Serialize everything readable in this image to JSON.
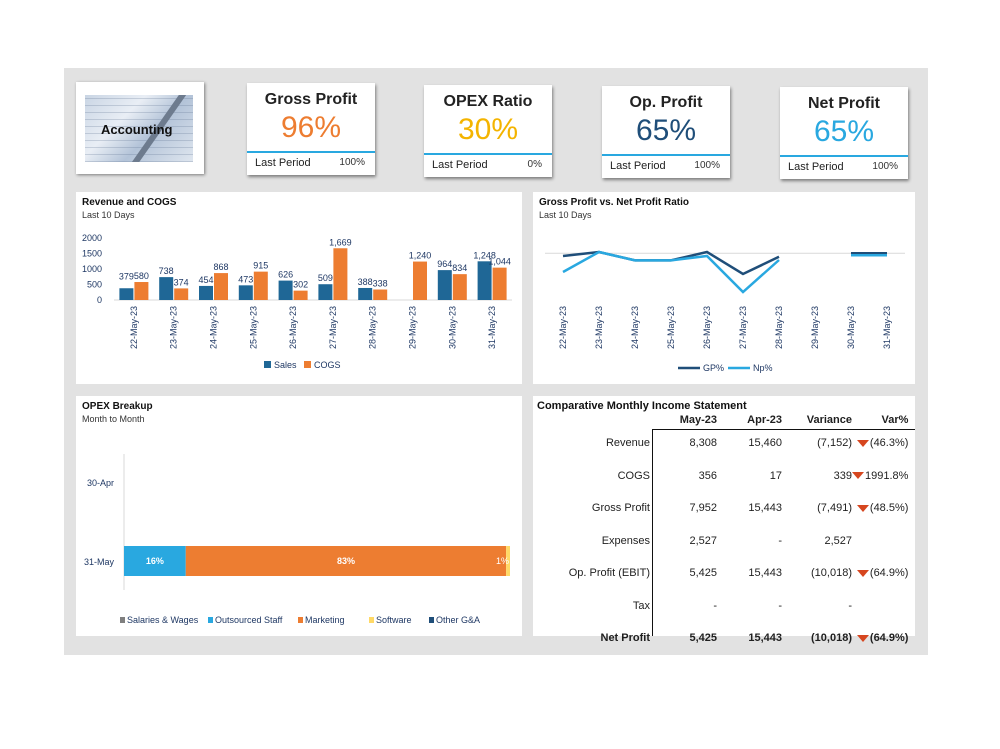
{
  "logo": {
    "label": "Accounting"
  },
  "kpis": [
    {
      "title": "Gross Profit",
      "value": "96%",
      "color": "#ed7d31",
      "period_label": "Last Period",
      "period_value": "100%"
    },
    {
      "title": "OPEX Ratio",
      "value": "30%",
      "color": "#f4b400",
      "period_label": "Last Period",
      "period_value": "0%"
    },
    {
      "title": "Op. Profit",
      "value": "65%",
      "color": "#1f4e79",
      "period_label": "Last Period",
      "period_value": "100%"
    },
    {
      "title": "Net Profit",
      "value": "65%",
      "color": "#29a8e0",
      "period_label": "Last Period",
      "period_value": "100%"
    }
  ],
  "panels": {
    "revenue": {
      "title": "Revenue and COGS",
      "subtitle": "Last 10 Days"
    },
    "gp": {
      "title": "Gross Profit vs. Net Profit Ratio",
      "subtitle": "Last 10 Days"
    },
    "opex": {
      "title": "OPEX Breakup",
      "subtitle": "Month to Month"
    },
    "income": {
      "title": "Comparative Monthly Income Statement"
    }
  },
  "colors": {
    "sales": "#1f6796",
    "cogs": "#ed7d31",
    "gp": "#1f4e79",
    "np": "#29a8e0",
    "salaries": "#7f7f7f",
    "outsourced": "#29a8e0",
    "marketing": "#ed7d31",
    "software": "#ffd966",
    "other": "#1f4e79"
  },
  "chart_data": [
    {
      "type": "bar",
      "title": "Revenue and COGS",
      "subtitle": "Last 10 Days",
      "categories": [
        "22-May-23",
        "23-May-23",
        "24-May-23",
        "25-May-23",
        "26-May-23",
        "27-May-23",
        "28-May-23",
        "29-May-23",
        "30-May-23",
        "31-May-23"
      ],
      "series": [
        {
          "name": "Sales",
          "values": [
            379,
            738,
            454,
            473,
            626,
            509,
            388,
            null,
            964,
            1248
          ],
          "labels": [
            "379",
            "738",
            "454",
            "473",
            "626",
            "509",
            "388",
            "",
            "964",
            "1,248"
          ]
        },
        {
          "name": "COGS",
          "values": [
            580,
            374,
            868,
            915,
            302,
            1669,
            338,
            1240,
            834,
            1044
          ],
          "labels": [
            "580",
            "374",
            "868",
            "915",
            "302",
            "1,669",
            "338",
            "1,240",
            "834",
            "1,044"
          ]
        }
      ],
      "ylim": [
        0,
        2000
      ],
      "yticks": [
        "2000",
        "1500",
        "1000",
        "500",
        "0"
      ],
      "legend": "bottom"
    },
    {
      "type": "line",
      "title": "Gross Profit vs. Net Profit Ratio",
      "subtitle": "Last 10 Days",
      "categories": [
        "22-May-23",
        "23-May-23",
        "24-May-23",
        "25-May-23",
        "26-May-23",
        "27-May-23",
        "28-May-23",
        "29-May-23",
        "30-May-23",
        "31-May-23"
      ],
      "series": [
        {
          "name": "GP%",
          "values": [
            0.9,
            1.0,
            0.79,
            0.79,
            1.0,
            0.45,
            0.88,
            null,
            0.97,
            0.97
          ]
        },
        {
          "name": "Np%",
          "values": [
            0.5,
            1.0,
            0.79,
            0.79,
            0.9,
            0.0,
            0.8,
            null,
            0.92,
            0.92
          ]
        }
      ],
      "ylim": [
        0,
        1.1
      ],
      "legend": "bottom"
    },
    {
      "type": "bar",
      "orientation": "horizontal-stacked",
      "title": "OPEX Breakup",
      "subtitle": "Month to Month",
      "categories": [
        "30-Apr",
        "31-May"
      ],
      "series": [
        {
          "name": "Salaries & Wages",
          "values": [
            0,
            0
          ]
        },
        {
          "name": "Outsourced Staff",
          "values": [
            0,
            16
          ],
          "labels": [
            "",
            "16%"
          ]
        },
        {
          "name": "Marketing",
          "values": [
            0,
            83
          ],
          "labels": [
            "",
            "83%"
          ]
        },
        {
          "name": "Software",
          "values": [
            0,
            1
          ],
          "labels": [
            "",
            "1%"
          ]
        },
        {
          "name": "Other G&A",
          "values": [
            0,
            0
          ]
        }
      ],
      "xlim": [
        0,
        100
      ],
      "legend": "bottom"
    }
  ],
  "income": {
    "headers": [
      "May-23",
      "Apr-23",
      "Variance",
      "Var%"
    ],
    "rows": [
      {
        "label": "Revenue",
        "may": "8,308",
        "apr": "15,460",
        "var": "(7,152)",
        "pct": "(46.3%)",
        "arrow": true
      },
      {
        "label": "COGS",
        "may": "356",
        "apr": "17",
        "var": "339",
        "pct": "1991.8%",
        "arrow": true
      },
      {
        "label": "Gross Profit",
        "may": "7,952",
        "apr": "15,443",
        "var": "(7,491)",
        "pct": "(48.5%)",
        "arrow": true
      },
      {
        "label": "Expenses",
        "may": "2,527",
        "apr": "-",
        "var": "2,527",
        "pct": "",
        "arrow": false
      },
      {
        "label": "Op. Profit (EBIT)",
        "may": "5,425",
        "apr": "15,443",
        "var": "(10,018)",
        "pct": "(64.9%)",
        "arrow": true
      },
      {
        "label": "Tax",
        "may": "-",
        "apr": "-",
        "var": "-",
        "pct": "",
        "arrow": false
      },
      {
        "label": "Net Profit",
        "may": "5,425",
        "apr": "15,443",
        "var": "(10,018)",
        "pct": "(64.9%)",
        "arrow": true,
        "bold": true
      }
    ]
  }
}
